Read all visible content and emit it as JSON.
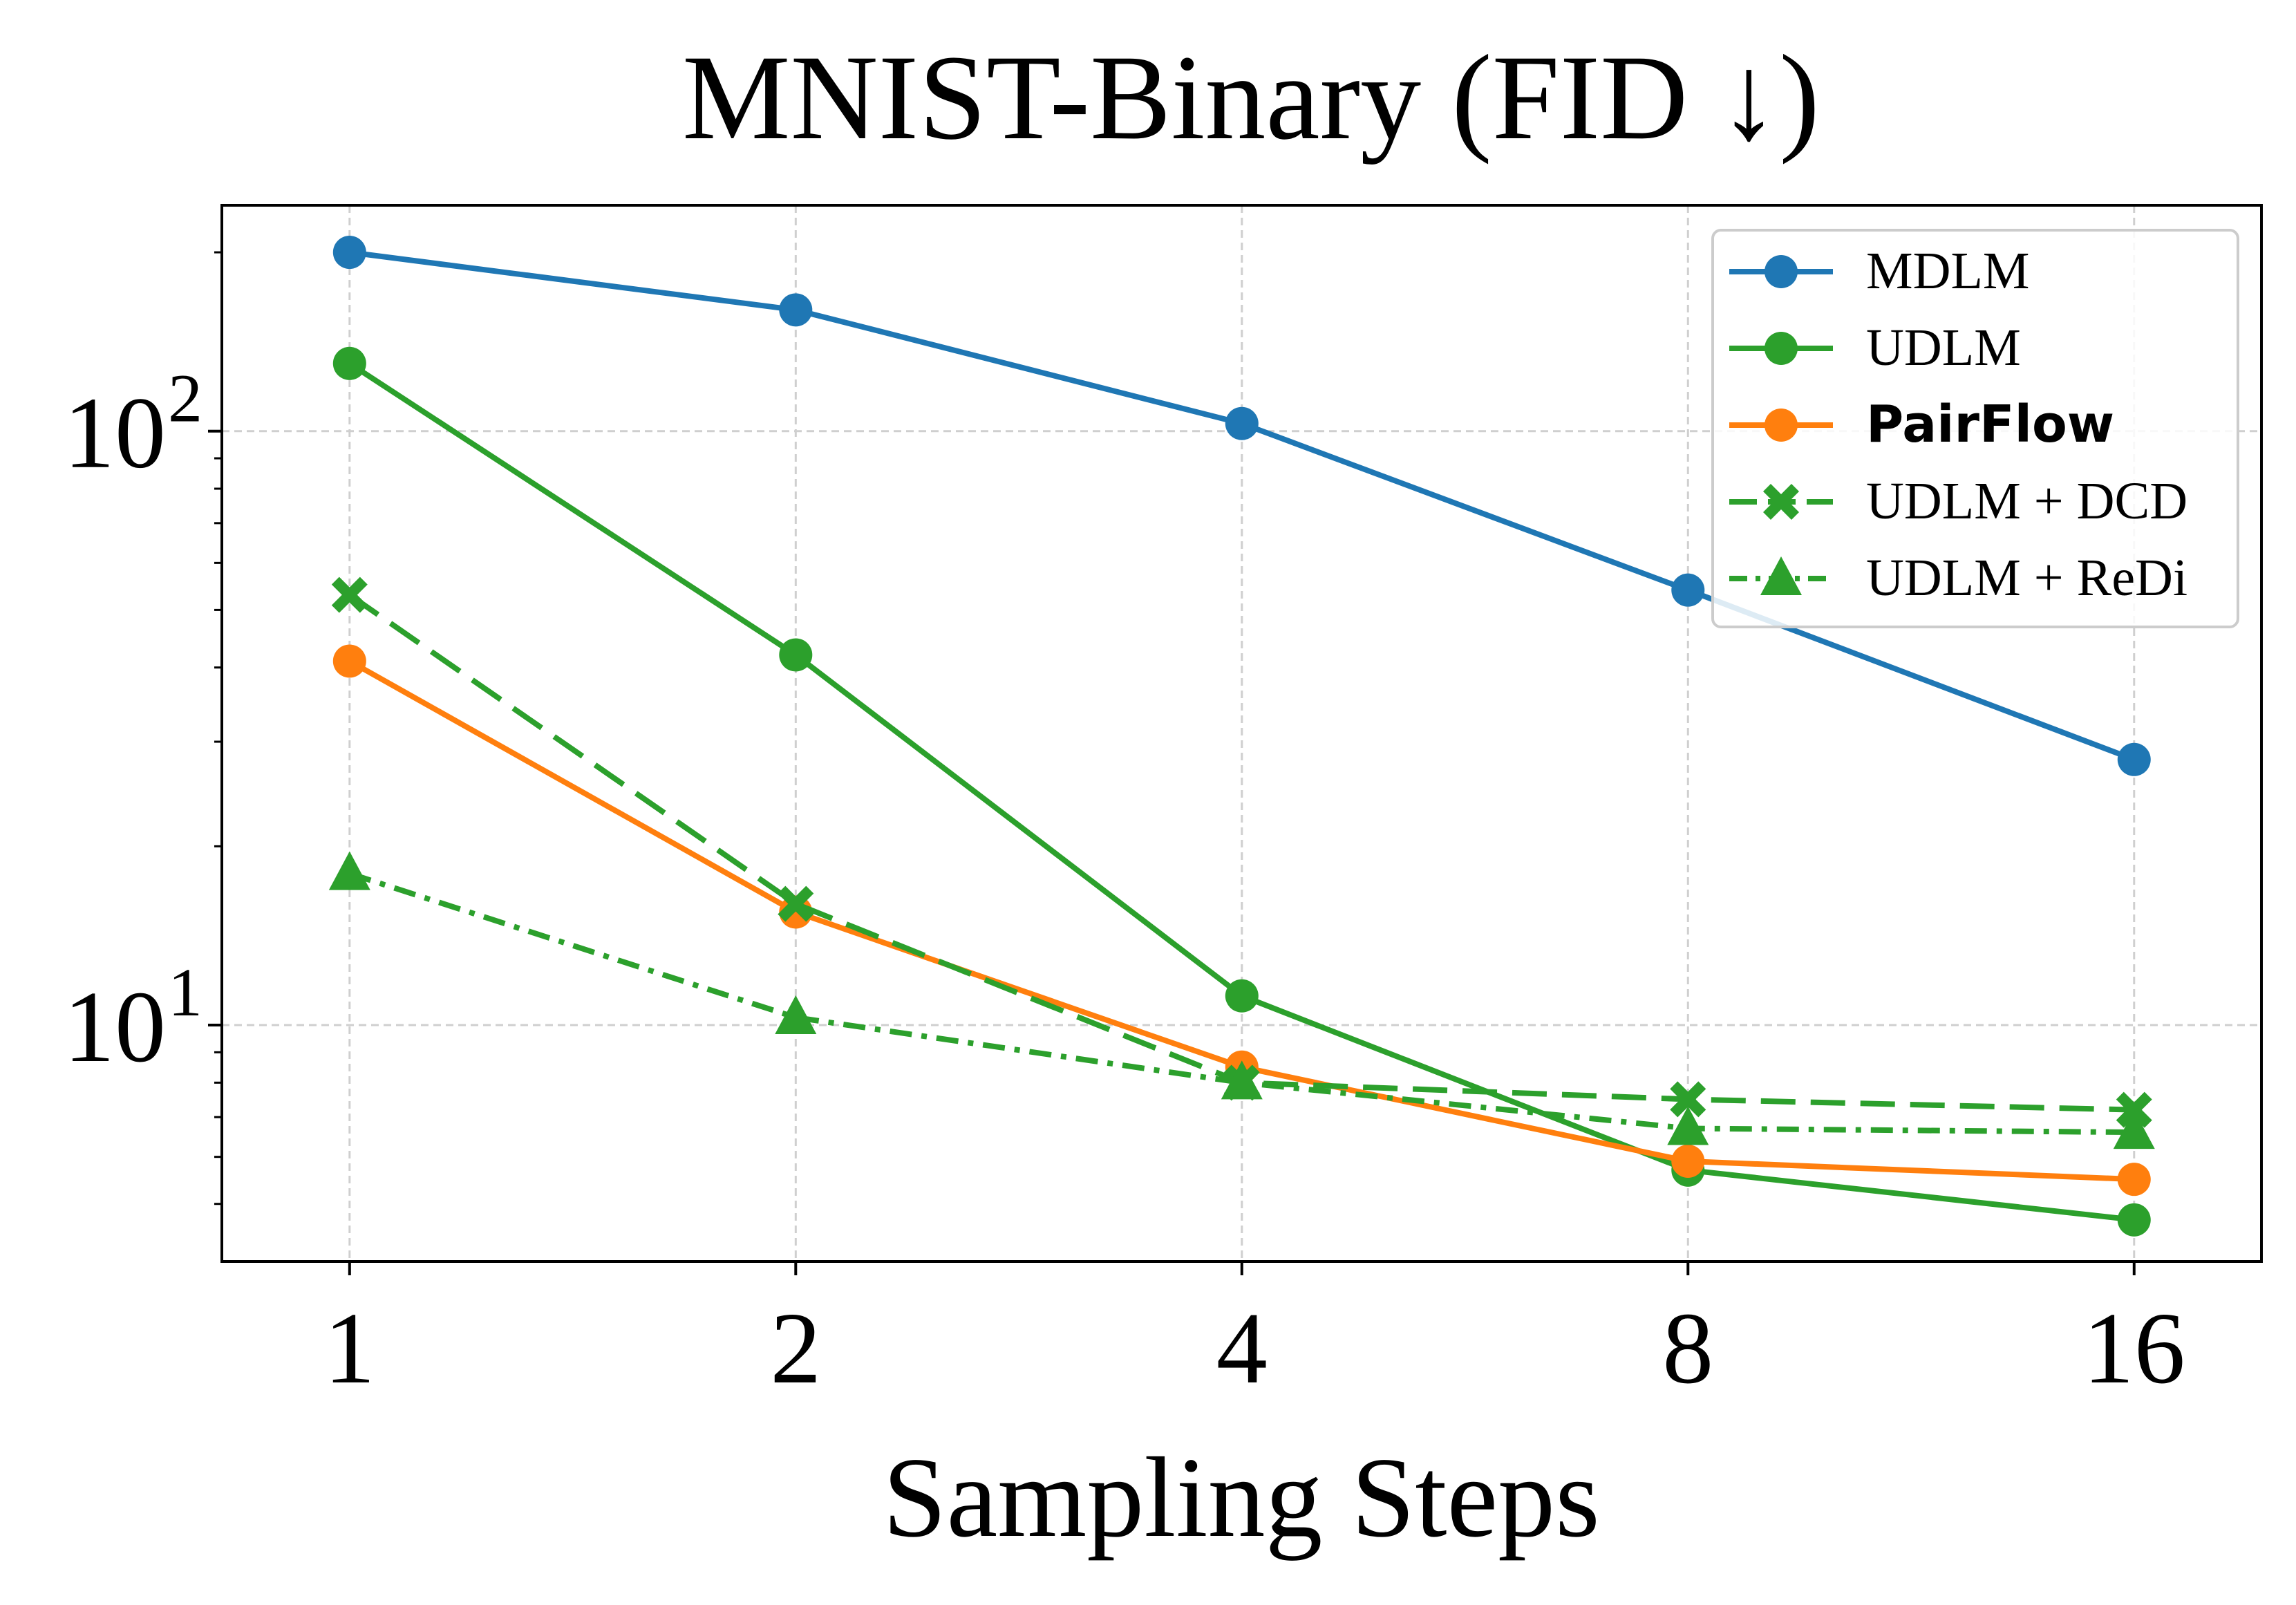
{
  "chart_data": {
    "type": "line",
    "title": "MNIST-Binary (FID ↓)",
    "xlabel": "Sampling Steps",
    "ylabel": "",
    "x_scale": "log2",
    "y_scale": "log10",
    "categories": [
      "1",
      "2",
      "4",
      "8",
      "16"
    ],
    "x": [
      1,
      2,
      4,
      8,
      16
    ],
    "xlim": [
      0.82,
      19.5
    ],
    "ylim": [
      4.0,
      240.0
    ],
    "y_ticks": [
      {
        "value": 10,
        "base": "10",
        "exp": "1"
      },
      {
        "value": 100,
        "base": "10",
        "exp": "2"
      }
    ],
    "grid": true,
    "legend_position": "top-right",
    "series": [
      {
        "name": "MDLM",
        "color": "#1f77b4",
        "marker": "circle",
        "linestyle": "solid",
        "bold": false,
        "values": [
          200,
          160,
          103,
          54,
          28
        ]
      },
      {
        "name": "UDLM",
        "color": "#2ca02c",
        "marker": "circle",
        "linestyle": "solid",
        "bold": false,
        "values": [
          130,
          42,
          11.2,
          5.7,
          4.7
        ]
      },
      {
        "name": "PairFlow",
        "color": "#ff7f0e",
        "marker": "circle",
        "linestyle": "solid",
        "bold": true,
        "values": [
          41,
          15.5,
          8.5,
          5.9,
          5.5
        ]
      },
      {
        "name": "UDLM + DCD",
        "color": "#2ca02c",
        "marker": "x",
        "linestyle": "dashed",
        "bold": false,
        "values": [
          53,
          16,
          8.0,
          7.5,
          7.2
        ]
      },
      {
        "name": "UDLM + ReDi",
        "color": "#2ca02c",
        "marker": "triangle",
        "linestyle": "dashdot",
        "bold": false,
        "values": [
          18,
          10.3,
          8.0,
          6.7,
          6.6
        ]
      }
    ]
  }
}
